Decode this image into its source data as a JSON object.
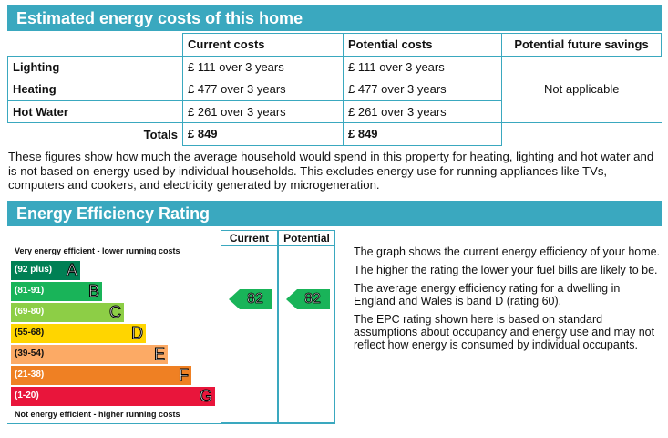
{
  "costs_section": {
    "title": "Estimated energy costs of this home",
    "headers": [
      "",
      "Current costs",
      "Potential costs",
      "Potential future savings"
    ],
    "rows": [
      {
        "label": "Lighting",
        "current": "£ 111 over 3 years",
        "potential": "£ 111 over 3 years"
      },
      {
        "label": "Heating",
        "current": "£ 477 over 3 years",
        "potential": "£ 477 over 3 years"
      },
      {
        "label": "Hot Water",
        "current": "£ 261 over 3 years",
        "potential": "£ 261 over 3 years"
      }
    ],
    "totals_label": "Totals",
    "total_current": "£ 849",
    "total_potential": "£ 849",
    "savings": "Not applicable",
    "note": "These figures show how much the average household would spend in this property for heating, lighting and hot water and is not based on energy used by individual households. This excludes energy use for running appliances like TVs, computers and cookers, and electricity generated by microgeneration."
  },
  "rating_section": {
    "title": "Energy Efficiency Rating",
    "col_current": "Current",
    "col_potential": "Potential",
    "caption_top": "Very energy efficient - lower running costs",
    "caption_bottom": "Not energy efficient - higher running costs",
    "bands": [
      {
        "range": "(92 plus)",
        "letter": "A",
        "color": "#008054"
      },
      {
        "range": "(81-91)",
        "letter": "B",
        "color": "#19b459"
      },
      {
        "range": "(69-80)",
        "letter": "C",
        "color": "#8dce46"
      },
      {
        "range": "(55-68)",
        "letter": "D",
        "color": "#ffd500"
      },
      {
        "range": "(39-54)",
        "letter": "E",
        "color": "#fcaa65"
      },
      {
        "range": "(21-38)",
        "letter": "F",
        "color": "#ef8023"
      },
      {
        "range": "(1-20)",
        "letter": "G",
        "color": "#e9153b"
      }
    ],
    "current_score": "82",
    "potential_score": "82",
    "score_band_color": "#19b459",
    "explanation": [
      "The graph shows the current energy efficiency of your home.",
      "The higher the rating the lower your fuel bills are likely to be.",
      "The average energy efficiency rating for a dwelling in England and Wales is band D (rating 60).",
      "The EPC rating shown here is based on standard assumptions about occupancy and energy use and may not reflect how energy is consumed by individual occupants."
    ]
  }
}
